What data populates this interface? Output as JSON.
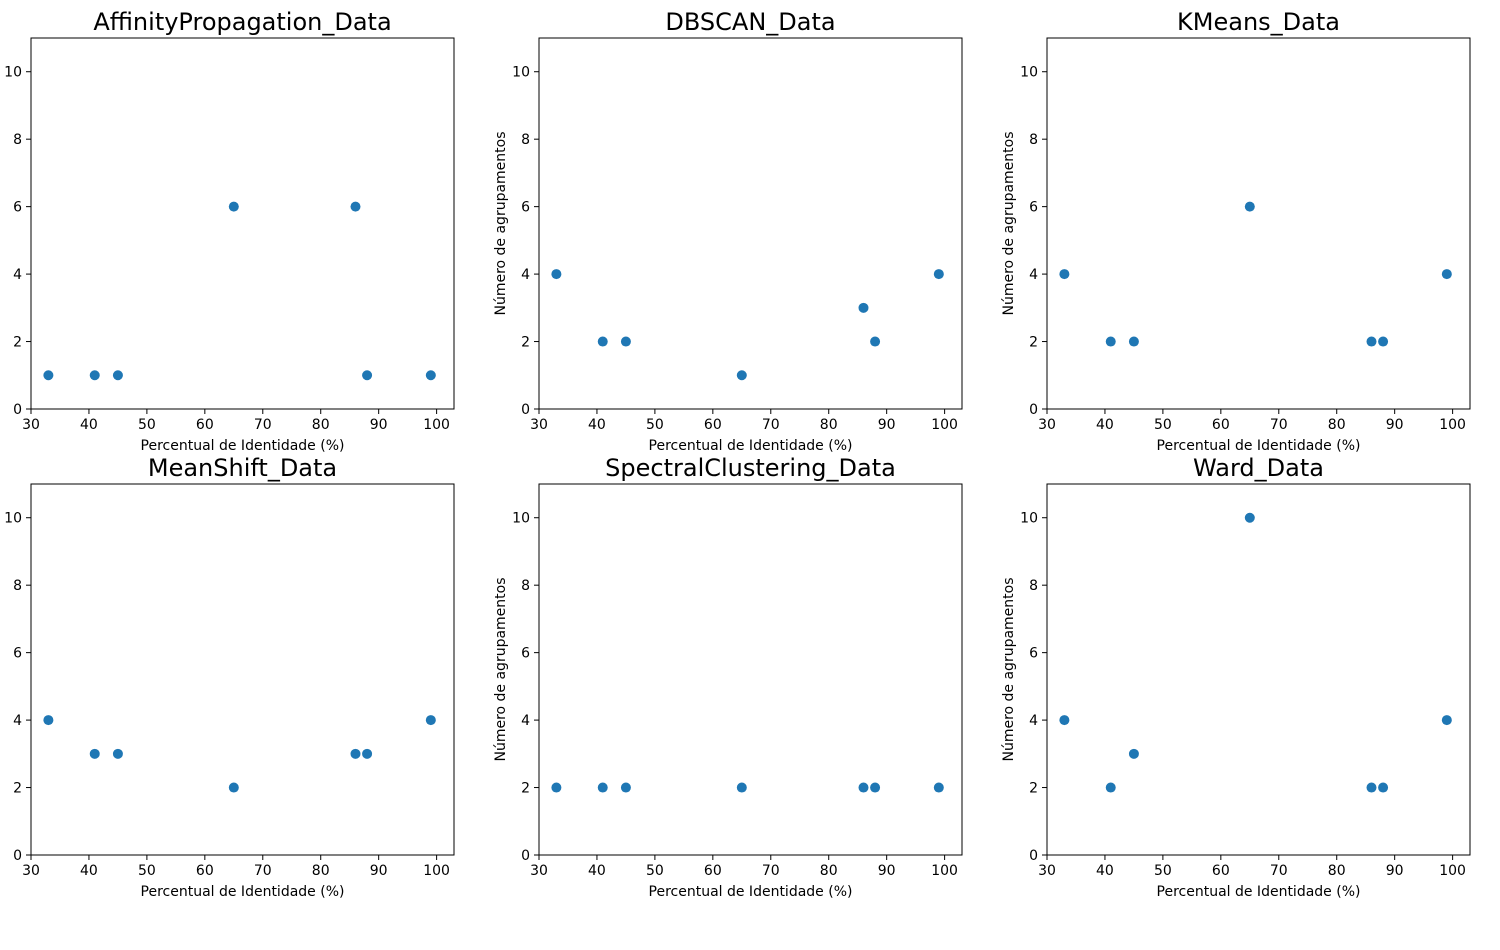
{
  "colors": {
    "marker": "#1f77b4",
    "axes": "#000000",
    "background": "#ffffff"
  },
  "chart_data": [
    {
      "type": "scatter",
      "title": "AffinityPropagation_Data",
      "xlabel": "Percentual de Identidade (%)",
      "ylabel": "",
      "xlim": [
        30,
        103
      ],
      "ylim": [
        0,
        11
      ],
      "xticks": [
        "30",
        "40",
        "50",
        "60",
        "70",
        "80",
        "90",
        "100"
      ],
      "yticks": [
        "0",
        "2",
        "4",
        "6",
        "8",
        "10"
      ],
      "x": [
        33,
        41,
        45,
        65,
        86,
        88,
        99
      ],
      "y": [
        1,
        1,
        1,
        6,
        6,
        1,
        1
      ]
    },
    {
      "type": "scatter",
      "title": "DBSCAN_Data",
      "xlabel": "Percentual de Identidade (%)",
      "ylabel": "Número de agrupamentos",
      "xlim": [
        30,
        103
      ],
      "ylim": [
        0,
        11
      ],
      "xticks": [
        "30",
        "40",
        "50",
        "60",
        "70",
        "80",
        "90",
        "100"
      ],
      "yticks": [
        "0",
        "2",
        "4",
        "6",
        "8",
        "10"
      ],
      "x": [
        33,
        41,
        45,
        65,
        86,
        88,
        99
      ],
      "y": [
        4,
        2,
        2,
        1,
        3,
        2,
        4
      ]
    },
    {
      "type": "scatter",
      "title": "KMeans_Data",
      "xlabel": "Percentual de Identidade (%)",
      "ylabel": "Número de agrupamentos",
      "xlim": [
        30,
        103
      ],
      "ylim": [
        0,
        11
      ],
      "xticks": [
        "30",
        "40",
        "50",
        "60",
        "70",
        "80",
        "90",
        "100"
      ],
      "yticks": [
        "0",
        "2",
        "4",
        "6",
        "8",
        "10"
      ],
      "x": [
        33,
        41,
        45,
        65,
        86,
        88,
        99
      ],
      "y": [
        4,
        2,
        2,
        6,
        2,
        2,
        4
      ]
    },
    {
      "type": "scatter",
      "title": "MeanShift_Data",
      "xlabel": "Percentual de Identidade (%)",
      "ylabel": "",
      "xlim": [
        30,
        103
      ],
      "ylim": [
        0,
        11
      ],
      "xticks": [
        "30",
        "40",
        "50",
        "60",
        "70",
        "80",
        "90",
        "100"
      ],
      "yticks": [
        "0",
        "2",
        "4",
        "6",
        "8",
        "10"
      ],
      "x": [
        33,
        41,
        45,
        65,
        86,
        88,
        99
      ],
      "y": [
        4,
        3,
        3,
        2,
        3,
        3,
        4
      ]
    },
    {
      "type": "scatter",
      "title": "SpectralClustering_Data",
      "xlabel": "Percentual de Identidade (%)",
      "ylabel": "Número de agrupamentos",
      "xlim": [
        30,
        103
      ],
      "ylim": [
        0,
        11
      ],
      "xticks": [
        "30",
        "40",
        "50",
        "60",
        "70",
        "80",
        "90",
        "100"
      ],
      "yticks": [
        "0",
        "2",
        "4",
        "6",
        "8",
        "10"
      ],
      "x": [
        33,
        41,
        45,
        65,
        86,
        88,
        99
      ],
      "y": [
        2,
        2,
        2,
        2,
        2,
        2,
        2
      ]
    },
    {
      "type": "scatter",
      "title": "Ward_Data",
      "xlabel": "Percentual de Identidade (%)",
      "ylabel": "Número de agrupamentos",
      "xlim": [
        30,
        103
      ],
      "ylim": [
        0,
        11
      ],
      "xticks": [
        "30",
        "40",
        "50",
        "60",
        "70",
        "80",
        "90",
        "100"
      ],
      "yticks": [
        "0",
        "2",
        "4",
        "6",
        "8",
        "10"
      ],
      "x": [
        33,
        41,
        45,
        65,
        86,
        88,
        99
      ],
      "y": [
        4,
        2,
        3,
        10,
        2,
        2,
        4
      ]
    }
  ]
}
